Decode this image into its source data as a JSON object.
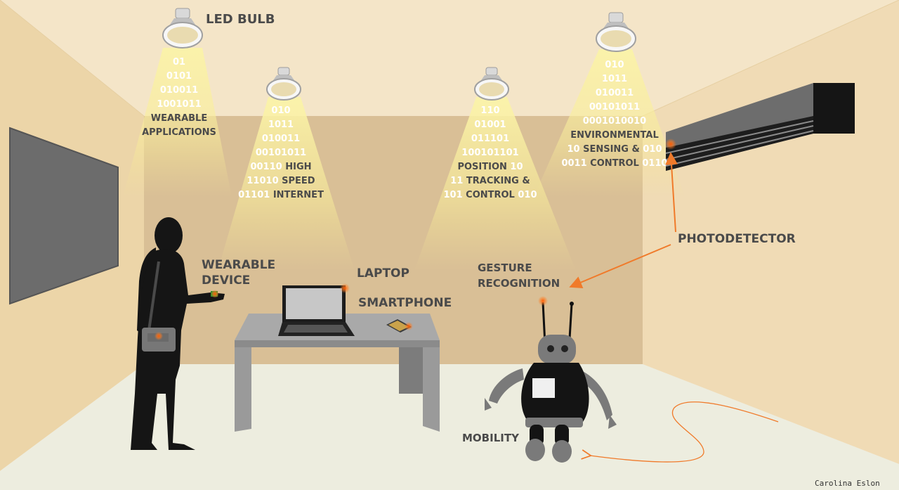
{
  "labels": {
    "led_bulb": "LED BULB",
    "wearable_device": [
      "WEARABLE",
      "DEVICE"
    ],
    "laptop": "LAPTOP",
    "smartphone": "SMARTPHONE",
    "gesture_recognition": [
      "GESTURE",
      "RECOGNITION"
    ],
    "photodetector": "PHOTODETECTOR",
    "mobility": "MOBILITY"
  },
  "beams": [
    {
      "lines": [
        [
          {
            "t": "01",
            "k": "b"
          }
        ],
        [
          {
            "t": "0101",
            "k": "b"
          }
        ],
        [
          {
            "t": "010011",
            "k": "b"
          }
        ],
        [
          {
            "t": "1001011",
            "k": "b"
          }
        ],
        [
          {
            "t": "WEARABLE",
            "k": "w"
          }
        ],
        [
          {
            "t": "APPLICATIONS",
            "k": "w"
          }
        ]
      ]
    },
    {
      "lines": [
        [
          {
            "t": "010",
            "k": "b"
          }
        ],
        [
          {
            "t": "1011",
            "k": "b"
          }
        ],
        [
          {
            "t": "010011",
            "k": "b"
          }
        ],
        [
          {
            "t": "00101011",
            "k": "b"
          }
        ],
        [
          {
            "t": "00110 ",
            "k": "b"
          },
          {
            "t": "HIGH",
            "k": "w"
          }
        ],
        [
          {
            "t": "11010 ",
            "k": "b"
          },
          {
            "t": "SPEED",
            "k": "w"
          }
        ],
        [
          {
            "t": "01101 ",
            "k": "b"
          },
          {
            "t": "INTERNET",
            "k": "w"
          }
        ]
      ]
    },
    {
      "lines": [
        [
          {
            "t": "110",
            "k": "b"
          }
        ],
        [
          {
            "t": "01001",
            "k": "b"
          }
        ],
        [
          {
            "t": "011101",
            "k": "b"
          }
        ],
        [
          {
            "t": "100101101",
            "k": "b"
          }
        ],
        [
          {
            "t": "POSITION ",
            "k": "w"
          },
          {
            "t": "10",
            "k": "b"
          }
        ],
        [
          {
            "t": "11 ",
            "k": "b"
          },
          {
            "t": "TRACKING &",
            "k": "w"
          }
        ],
        [
          {
            "t": "101 ",
            "k": "b"
          },
          {
            "t": "CONTROL",
            "k": "w"
          },
          {
            "t": " 010",
            "k": "b"
          }
        ]
      ]
    },
    {
      "lines": [
        [
          {
            "t": "010",
            "k": "b"
          }
        ],
        [
          {
            "t": "1011",
            "k": "b"
          }
        ],
        [
          {
            "t": "010011",
            "k": "b"
          }
        ],
        [
          {
            "t": "00101011",
            "k": "b"
          }
        ],
        [
          {
            "t": "0001010010",
            "k": "b"
          }
        ],
        [
          {
            "t": "ENVIRONMENTAL",
            "k": "w"
          }
        ],
        [
          {
            "t": "10 ",
            "k": "b"
          },
          {
            "t": "SENSING &",
            "k": "w"
          },
          {
            "t": " 010",
            "k": "b"
          }
        ],
        [
          {
            "t": "0011 ",
            "k": "b"
          },
          {
            "t": "CONTROL",
            "k": "w"
          },
          {
            "t": " 0110",
            "k": "b"
          }
        ]
      ]
    }
  ],
  "credit": "Carolina Eslon",
  "colors": {
    "beam_light": "#fbf3a8",
    "binary_text": "#ffffff",
    "word_text": "#4a4a4a",
    "label_text": "#4a4a4a",
    "accent_orange": "#f07a2a",
    "wall": "#f1e2c4",
    "floor": "#ededdf"
  }
}
